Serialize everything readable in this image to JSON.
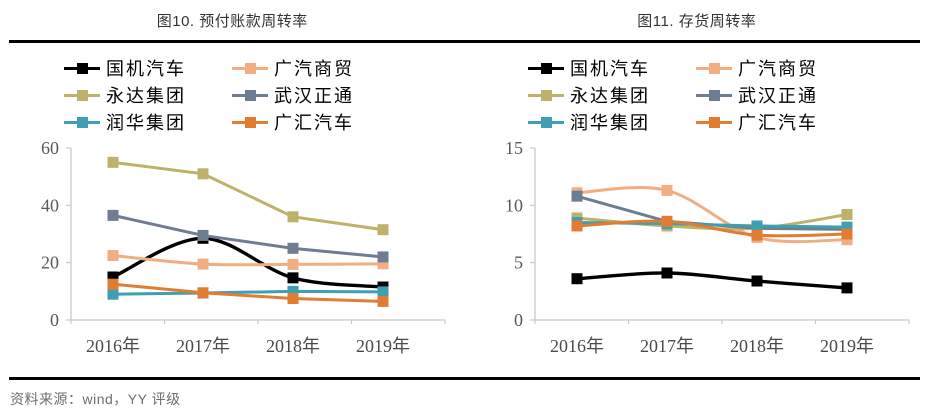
{
  "header": {
    "left_title": "图10. 预付账款周转率",
    "right_title": "图11. 存货周转率"
  },
  "footer": {
    "source_text": "资料来源：wind，YY 评级"
  },
  "style": {
    "axis_color": "#c9c9c9",
    "tick_label_color": "#595959",
    "x_label_color": "#4a4a4a"
  },
  "chart_data": [
    {
      "type": "line",
      "title": "图10. 预付账款周转率",
      "categories": [
        "2016年",
        "2017年",
        "2018年",
        "2019年"
      ],
      "xlabel": "",
      "ylabel": "",
      "ylim": [
        0,
        60
      ],
      "yticks": [
        0,
        20,
        40,
        60
      ],
      "grid": false,
      "legend_position": "top",
      "series": [
        {
          "name": "国机汽车",
          "color": "#000000",
          "smooth": true,
          "values": [
            15,
            28.5,
            14.7,
            11.5
          ]
        },
        {
          "name": "广汽商贸",
          "color": "#F1AE83",
          "smooth": true,
          "values": [
            22.5,
            19.5,
            19.4,
            19.6
          ]
        },
        {
          "name": "永达集团",
          "color": "#BDB16B",
          "smooth": false,
          "values": [
            55,
            51,
            36,
            31.5
          ]
        },
        {
          "name": "武汉正通",
          "color": "#6F7D92",
          "smooth": false,
          "values": [
            36.5,
            29.5,
            25,
            22
          ]
        },
        {
          "name": "润华集团",
          "color": "#3E9FB3",
          "smooth": false,
          "values": [
            9,
            9.4,
            10,
            9.8
          ]
        },
        {
          "name": "广汇汽车",
          "color": "#E07D33",
          "smooth": false,
          "values": [
            12.5,
            9.5,
            7.5,
            6.5
          ]
        }
      ]
    },
    {
      "type": "line",
      "title": "图11. 存货周转率",
      "categories": [
        "2016年",
        "2017年",
        "2018年",
        "2019年"
      ],
      "xlabel": "",
      "ylabel": "",
      "ylim": [
        0,
        15
      ],
      "yticks": [
        0,
        5,
        10,
        15
      ],
      "grid": false,
      "legend_position": "top",
      "series": [
        {
          "name": "国机汽车",
          "color": "#000000",
          "smooth": true,
          "values": [
            3.6,
            4.1,
            3.4,
            2.8
          ]
        },
        {
          "name": "广汽商贸",
          "color": "#F1AE83",
          "smooth": true,
          "values": [
            11.1,
            11.3,
            7.2,
            7.0
          ]
        },
        {
          "name": "永达集团",
          "color": "#BDB16B",
          "smooth": true,
          "values": [
            8.9,
            8.2,
            8.0,
            9.2
          ]
        },
        {
          "name": "武汉正通",
          "color": "#6F7D92",
          "smooth": false,
          "values": [
            10.8,
            8.6,
            8.0,
            7.9
          ]
        },
        {
          "name": "润华集团",
          "color": "#3E9FB3",
          "smooth": false,
          "values": [
            8.5,
            8.4,
            8.2,
            8.1
          ]
        },
        {
          "name": "广汇汽车",
          "color": "#E07D33",
          "smooth": true,
          "values": [
            8.2,
            8.6,
            7.4,
            7.5
          ]
        }
      ]
    }
  ]
}
